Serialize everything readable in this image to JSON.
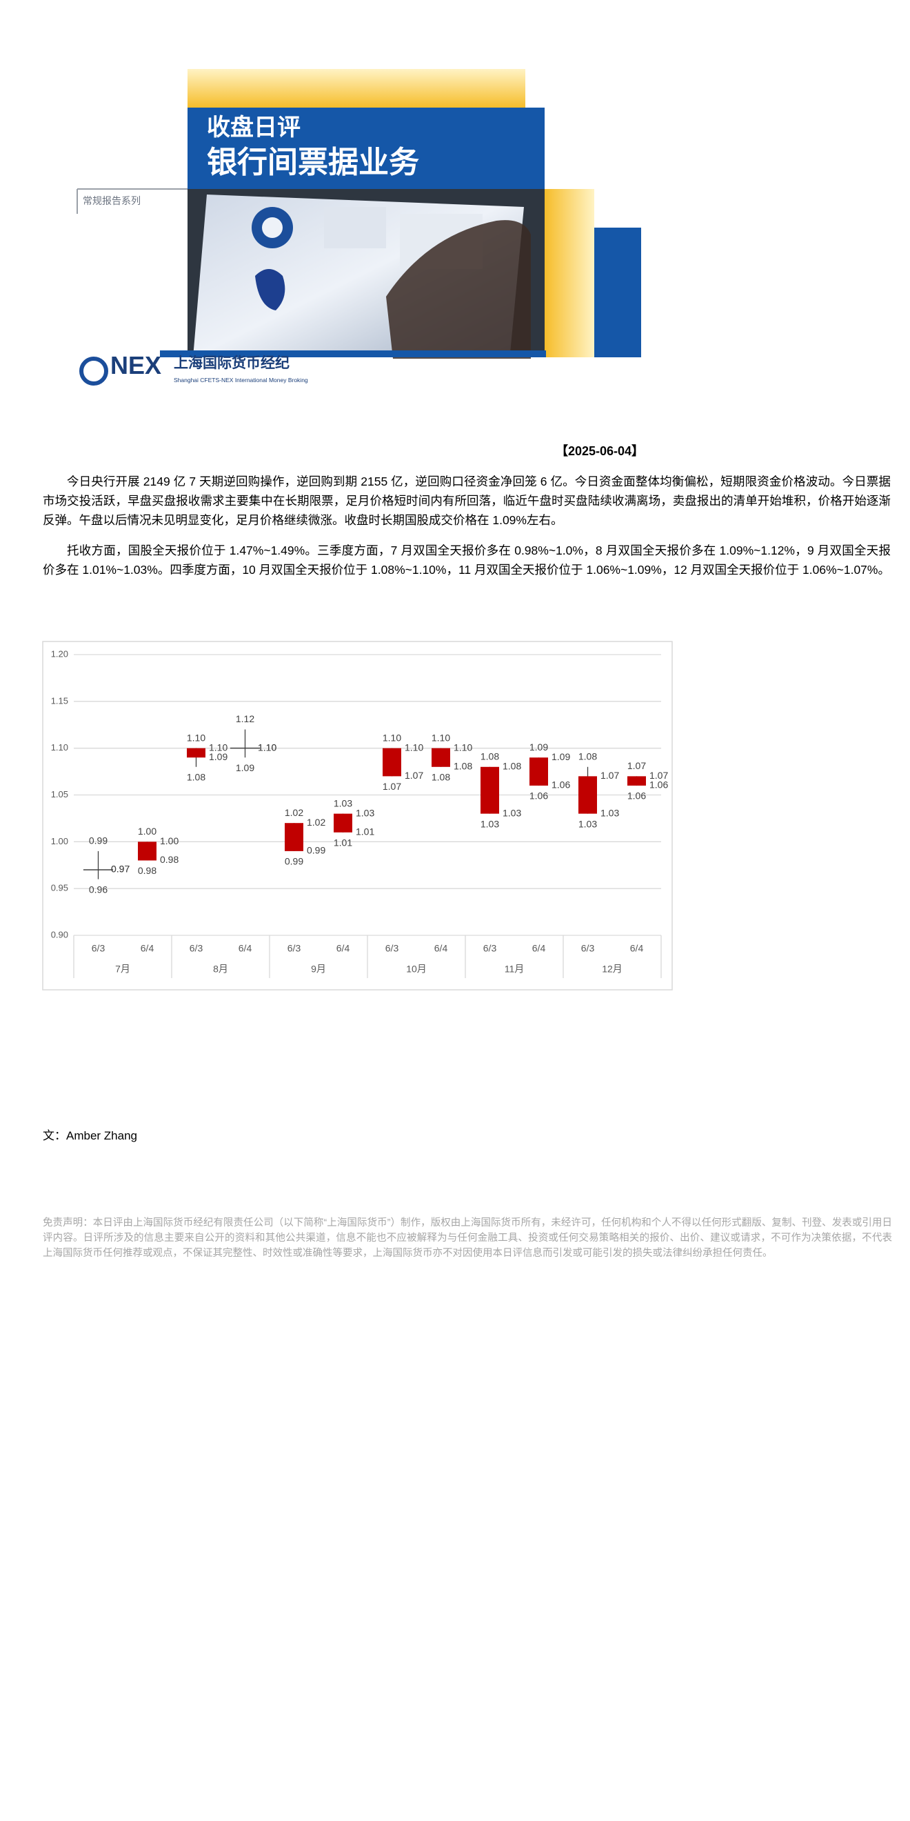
{
  "banner": {
    "title_1": "收盘日评",
    "title_2": "银行间票据业务",
    "series": "常规报告系列",
    "logo_brand": "NEX",
    "logo_cn": "上海国际货币经纪",
    "logo_en": "Shanghai CFETS-NEX International Money Broking"
  },
  "date": "【2025-06-04】",
  "paragraphs": [
    "今日央行开展 2149 亿 7 天期逆回购操作，逆回购到期 2155 亿，逆回购口径资金净回笼 6 亿。今日资金面整体均衡偏松，短期限资金价格波动。今日票据市场交投活跃，早盘买盘报收需求主要集中在长期限票，足月价格短时间内有所回落，临近午盘时买盘陆续收满离场，卖盘报出的清单开始堆积，价格开始逐渐反弹。午盘以后情况未见明显变化，足月价格继续微涨。收盘时长期国股成交价格在 1.09%左右。",
    "托收方面，国股全天报价位于 1.47%~1.49%。三季度方面，7 月双国全天报价多在 0.98%~1.0%，8 月双国全天报价多在 1.09%~1.12%，9 月双国全天报价多在 1.01%~1.03%。四季度方面，10 月双国全天报价位于 1.08%~1.10%，11 月双国全天报价位于 1.06%~1.09%，12 月双国全天报价位于 1.06%~1.07%。"
  ],
  "chart_data": {
    "type": "candlestick",
    "categories": [
      "6/3",
      "6/4",
      "6/3",
      "6/4",
      "6/3",
      "6/4",
      "6/3",
      "6/4",
      "6/3",
      "6/4",
      "6/3",
      "6/4"
    ],
    "groups": [
      "7月",
      "8月",
      "9月",
      "10月",
      "11月",
      "12月"
    ],
    "color": "#c00000",
    "grid": true,
    "ylim": [
      0.9,
      1.2
    ],
    "yticks": [
      {
        "value": 0.9,
        "label": "0.90"
      },
      {
        "value": 0.95,
        "label": "0.95"
      },
      {
        "value": 1.0,
        "label": "1.00"
      },
      {
        "value": 1.05,
        "label": "1.05"
      },
      {
        "value": 1.1,
        "label": "1.10"
      },
      {
        "value": 1.15,
        "label": "1.15"
      },
      {
        "value": 1.2,
        "label": "1.20"
      }
    ],
    "open": {
      "values": [
        0.97,
        0.98,
        1.09,
        1.1,
        0.99,
        1.01,
        1.07,
        1.08,
        1.03,
        1.06,
        1.03,
        1.06
      ],
      "value_labels": [
        "0.97",
        "0.98",
        "1.09",
        "1.10",
        "0.99",
        "1.01",
        "1.07",
        "1.08",
        "1.03",
        "1.06",
        "1.03",
        "1.06"
      ]
    },
    "high": {
      "values": [
        0.99,
        1.0,
        1.1,
        1.12,
        1.02,
        1.03,
        1.1,
        1.1,
        1.08,
        1.09,
        1.08,
        1.07
      ],
      "value_labels": [
        "0.99",
        "1.00",
        "1.10",
        "1.12",
        "1.02",
        "1.03",
        "1.10",
        "1.10",
        "1.08",
        "1.09",
        "1.08",
        "1.07"
      ]
    },
    "low": {
      "values": [
        0.96,
        0.98,
        1.08,
        1.09,
        0.99,
        1.01,
        1.07,
        1.08,
        1.03,
        1.06,
        1.03,
        1.06
      ],
      "value_labels": [
        "0.96",
        "0.98",
        "1.08",
        "1.09",
        "0.99",
        "1.01",
        "1.07",
        "1.08",
        "1.03",
        "1.06",
        "1.03",
        "1.06"
      ]
    },
    "close": {
      "values": [
        0.97,
        1.0,
        1.1,
        1.1,
        1.02,
        1.03,
        1.1,
        1.1,
        1.08,
        1.09,
        1.07,
        1.07
      ],
      "value_labels": [
        "0.97",
        "1.00",
        "1.10",
        "1.10",
        "1.02",
        "1.03",
        "1.10",
        "1.10",
        "1.08",
        "1.09",
        "1.07",
        "1.07"
      ]
    }
  },
  "author": "文：Amber Zhang",
  "disclaimer": "免责声明：本日评由上海国际货币经纪有限责任公司（以下简称“上海国际货币”）制作，版权由上海国际货币所有，未经许可，任何机构和个人不得以任何形式翻版、复制、刊登、发表或引用日评内容。日评所涉及的信息主要来自公开的资料和其他公共渠道，信息不能也不应被解释为与任何金融工具、投资或任何交易策略相关的报价、出价、建议或请求，不可作为决策依据，不代表上海国际货币任何推荐或观点，不保证其完整性、时效性或准确性等要求，上海国际货币亦不对因使用本日评信息而引发或可能引发的损失或法律纠纷承担任何责任。"
}
